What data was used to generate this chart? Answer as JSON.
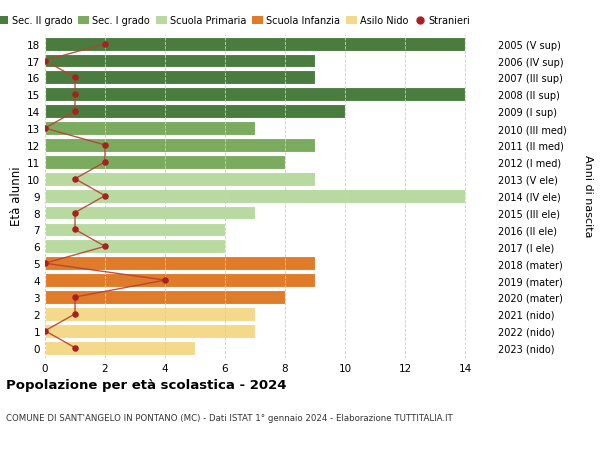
{
  "ages": [
    18,
    17,
    16,
    15,
    14,
    13,
    12,
    11,
    10,
    9,
    8,
    7,
    6,
    5,
    4,
    3,
    2,
    1,
    0
  ],
  "anni_nascita": [
    "2005 (V sup)",
    "2006 (IV sup)",
    "2007 (III sup)",
    "2008 (II sup)",
    "2009 (I sup)",
    "2010 (III med)",
    "2011 (II med)",
    "2012 (I med)",
    "2013 (V ele)",
    "2014 (IV ele)",
    "2015 (III ele)",
    "2016 (II ele)",
    "2017 (I ele)",
    "2018 (mater)",
    "2019 (mater)",
    "2020 (mater)",
    "2021 (nido)",
    "2022 (nido)",
    "2023 (nido)"
  ],
  "bar_values": [
    14,
    9,
    9,
    14,
    10,
    7,
    9,
    8,
    9,
    14,
    7,
    6,
    6,
    9,
    9,
    8,
    7,
    7,
    5
  ],
  "bar_colors": [
    "#4a7c3f",
    "#4a7c3f",
    "#4a7c3f",
    "#4a7c3f",
    "#4a7c3f",
    "#7aab5e",
    "#7aab5e",
    "#7aab5e",
    "#b8d9a0",
    "#b8d9a0",
    "#b8d9a0",
    "#b8d9a0",
    "#b8d9a0",
    "#e07b2a",
    "#e07b2a",
    "#e07b2a",
    "#f5d98b",
    "#f5d98b",
    "#f5d98b"
  ],
  "stranieri": [
    2,
    0,
    1,
    1,
    1,
    0,
    2,
    2,
    1,
    2,
    1,
    1,
    2,
    0,
    4,
    1,
    1,
    0,
    1
  ],
  "xlim": [
    0,
    15
  ],
  "xticks": [
    0,
    2,
    4,
    6,
    8,
    10,
    12,
    14
  ],
  "title": "Popolazione per età scolastica - 2024",
  "subtitle": "COMUNE DI SANT'ANGELO IN PONTANO (MC) - Dati ISTAT 1° gennaio 2024 - Elaborazione TUTTITALIA.IT",
  "ylabel": "Età alunni",
  "right_label": "Anni di nascita",
  "legend_labels": [
    "Sec. II grado",
    "Sec. I grado",
    "Scuola Primaria",
    "Scuola Infanzia",
    "Asilo Nido",
    "Stranieri"
  ],
  "legend_colors": [
    "#4a7c3f",
    "#7aab5e",
    "#b8d9a0",
    "#e07b2a",
    "#f5d98b",
    "#a82020"
  ],
  "bar_height": 0.82,
  "stranieri_color": "#a82020",
  "stranieri_line_color": "#b84030",
  "grid_color": "#cccccc",
  "bg_color": "#ffffff"
}
